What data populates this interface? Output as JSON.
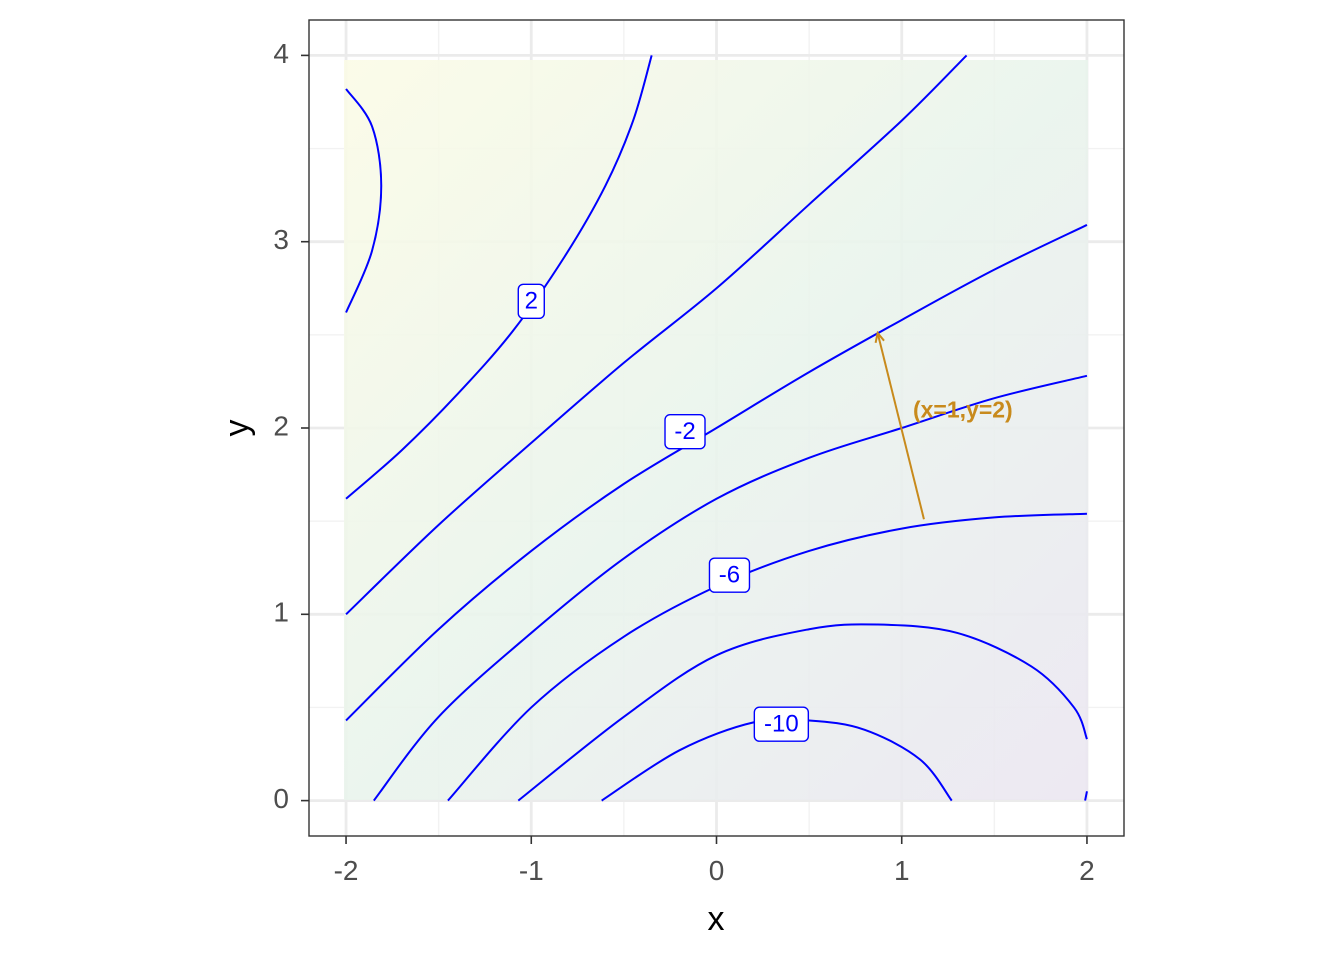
{
  "colors": {
    "contour": "#0000ff",
    "annotation": "#c88a1c",
    "grid_major": "#ebebeb",
    "grid_minor": "#f2f2f2",
    "panel_border": "#333333",
    "tick_label": "#4d4d4d",
    "fill_high": "#fbfbe6",
    "fill_mid": "#e9f4ec",
    "fill_low": "#ebe6f1"
  },
  "chart_data": {
    "type": "contour",
    "xlabel": "x",
    "ylabel": "y",
    "xlim": [
      -2.2,
      2.2
    ],
    "ylim": [
      -0.19,
      4.19
    ],
    "x_ticks": [
      -2,
      -1,
      0,
      1,
      2
    ],
    "x_tick_labels": [
      "-2",
      "-1",
      "0",
      "1",
      "2"
    ],
    "y_ticks": [
      0,
      1,
      2,
      3,
      4
    ],
    "y_tick_labels": [
      "0",
      "1",
      "2",
      "3",
      "4"
    ],
    "grid": true,
    "fill": "gradient",
    "contour_lines": [
      {
        "level": 4,
        "points": [
          [
            -2.0,
            3.82
          ],
          [
            -1.86,
            3.62
          ],
          [
            -1.81,
            3.3
          ],
          [
            -1.86,
            2.95
          ],
          [
            -2.0,
            2.62
          ]
        ]
      },
      {
        "level": 2,
        "points": [
          [
            -2.0,
            1.62
          ],
          [
            -1.7,
            1.88
          ],
          [
            -1.4,
            2.18
          ],
          [
            -1.1,
            2.52
          ],
          [
            -0.82,
            2.92
          ],
          [
            -0.6,
            3.3
          ],
          [
            -0.45,
            3.65
          ],
          [
            -0.35,
            4.0
          ]
        ]
      },
      {
        "level": 0,
        "points": [
          [
            -2.0,
            1.0
          ],
          [
            -1.5,
            1.48
          ],
          [
            -1.0,
            1.92
          ],
          [
            -0.5,
            2.35
          ],
          [
            0.0,
            2.75
          ],
          [
            0.5,
            3.2
          ],
          [
            1.0,
            3.65
          ],
          [
            1.35,
            4.0
          ]
        ]
      },
      {
        "level": -2,
        "points": [
          [
            -2.0,
            0.43
          ],
          [
            -1.5,
            0.92
          ],
          [
            -1.0,
            1.34
          ],
          [
            -0.5,
            1.7
          ],
          [
            0.0,
            2.0
          ],
          [
            0.5,
            2.3
          ],
          [
            1.0,
            2.58
          ],
          [
            1.5,
            2.85
          ],
          [
            2.0,
            3.09
          ]
        ]
      },
      {
        "level": -4,
        "points": [
          [
            -1.85,
            0.0
          ],
          [
            -1.5,
            0.45
          ],
          [
            -1.0,
            0.9
          ],
          [
            -0.5,
            1.3
          ],
          [
            0.0,
            1.62
          ],
          [
            0.5,
            1.84
          ],
          [
            1.0,
            2.0
          ],
          [
            1.5,
            2.16
          ],
          [
            2.0,
            2.28
          ]
        ]
      },
      {
        "level": -6,
        "points": [
          [
            -1.45,
            0.0
          ],
          [
            -1.0,
            0.5
          ],
          [
            -0.5,
            0.88
          ],
          [
            0.0,
            1.15
          ],
          [
            0.5,
            1.34
          ],
          [
            1.0,
            1.46
          ],
          [
            1.5,
            1.52
          ],
          [
            2.0,
            1.54
          ]
        ]
      },
      {
        "level": -8,
        "points": [
          [
            -1.07,
            0.0
          ],
          [
            -0.5,
            0.45
          ],
          [
            0.0,
            0.78
          ],
          [
            0.5,
            0.92
          ],
          [
            0.87,
            0.945
          ],
          [
            1.3,
            0.9
          ],
          [
            1.7,
            0.72
          ],
          [
            1.93,
            0.5
          ],
          [
            2.0,
            0.33
          ]
        ]
      },
      {
        "level": -10,
        "points": [
          [
            -0.62,
            0.0
          ],
          [
            -0.2,
            0.27
          ],
          [
            0.2,
            0.42
          ],
          [
            0.5,
            0.43
          ],
          [
            0.8,
            0.38
          ],
          [
            1.1,
            0.22
          ],
          [
            1.27,
            0.0
          ]
        ]
      },
      {
        "level": -12,
        "points": [
          [
            1.99,
            0.0
          ],
          [
            2.0,
            0.05
          ]
        ]
      }
    ],
    "contour_labels": [
      {
        "text": "2",
        "x": -1.0,
        "y": 2.68
      },
      {
        "text": "-2",
        "x": -0.17,
        "y": 1.98
      },
      {
        "text": "-6",
        "x": 0.07,
        "y": 1.21
      },
      {
        "text": "-10",
        "x": 0.35,
        "y": 0.41
      }
    ],
    "annotation": {
      "text": "(x=1,y=2)",
      "label_x": 1.33,
      "label_y": 2.09,
      "arrow_from": [
        1.12,
        1.51
      ],
      "arrow_to": [
        0.87,
        2.51
      ]
    }
  }
}
